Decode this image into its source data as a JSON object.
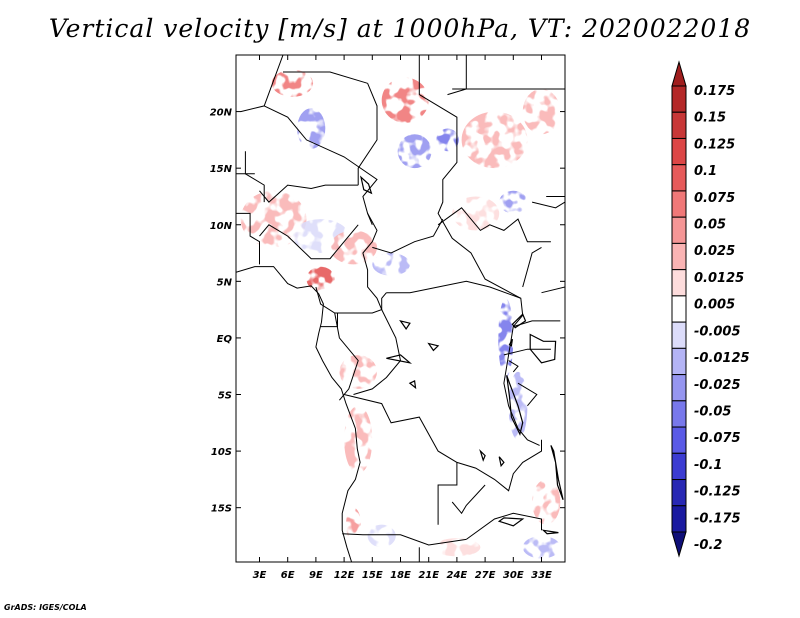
{
  "title": "Vertical velocity [m/s] at 1000hPa, VT: 2020022018",
  "credit": "GrADS: IGES/COLA",
  "map": {
    "lon_min": 0.5,
    "lon_max": 35.5,
    "lat_min": -19.8,
    "lat_max": 25.0,
    "lat_ticks": [
      {
        "value": 20,
        "label": "20N"
      },
      {
        "value": 15,
        "label": "15N"
      },
      {
        "value": 10,
        "label": "10N"
      },
      {
        "value": 5,
        "label": "5N"
      },
      {
        "value": 0,
        "label": "EQ"
      },
      {
        "value": -5,
        "label": "5S"
      },
      {
        "value": -10,
        "label": "10S"
      },
      {
        "value": -15,
        "label": "15S"
      }
    ],
    "lon_ticks": [
      {
        "value": 3,
        "label": "3E"
      },
      {
        "value": 6,
        "label": "6E"
      },
      {
        "value": 9,
        "label": "9E"
      },
      {
        "value": 12,
        "label": "12E"
      },
      {
        "value": 15,
        "label": "15E"
      },
      {
        "value": 18,
        "label": "18E"
      },
      {
        "value": 21,
        "label": "21E"
      },
      {
        "value": 24,
        "label": "24E"
      },
      {
        "value": 27,
        "label": "27E"
      },
      {
        "value": 30,
        "label": "30E"
      },
      {
        "value": 33,
        "label": "33E"
      }
    ]
  },
  "colorbar": {
    "levels": [
      "0.175",
      "0.15",
      "0.125",
      "0.1",
      "0.075",
      "0.05",
      "0.025",
      "0.0125",
      "0.005",
      "-0.005",
      "-0.0125",
      "-0.025",
      "-0.05",
      "-0.075",
      "-0.1",
      "-0.125",
      "-0.175",
      "-0.2"
    ],
    "colors": [
      "#a01e1e",
      "#b42828",
      "#c83737",
      "#dc4646",
      "#e65a5a",
      "#f07878",
      "#f59696",
      "#fab4b4",
      "#fddcdc",
      "#ffffff",
      "#dcdcfa",
      "#b4b4f5",
      "#9696f0",
      "#7878eb",
      "#5a5ae6",
      "#3c3cd2",
      "#2828b4",
      "#1a1aa0",
      "#0f0f78"
    ]
  },
  "patches": [
    {
      "lon": 6.5,
      "lat": 22.5,
      "rx": 2.2,
      "ry": 1.2,
      "value": 0.06
    },
    {
      "lon": 18.5,
      "lat": 21.0,
      "rx": 2.5,
      "ry": 2.0,
      "value": 0.07
    },
    {
      "lon": 8.5,
      "lat": 18.5,
      "rx": 1.5,
      "ry": 1.8,
      "value": -0.03
    },
    {
      "lon": 19.5,
      "lat": 16.5,
      "rx": 1.8,
      "ry": 1.5,
      "value": -0.04
    },
    {
      "lon": 23.0,
      "lat": 17.5,
      "rx": 1.2,
      "ry": 1.0,
      "value": -0.05
    },
    {
      "lon": 28.0,
      "lat": 17.5,
      "rx": 3.5,
      "ry": 2.5,
      "value": 0.02
    },
    {
      "lon": 33.0,
      "lat": 20.0,
      "rx": 2.0,
      "ry": 2.0,
      "value": 0.015
    },
    {
      "lon": 4.5,
      "lat": 10.5,
      "rx": 3.5,
      "ry": 2.5,
      "value": 0.015
    },
    {
      "lon": 9.5,
      "lat": 9.0,
      "rx": 3.0,
      "ry": 1.5,
      "value": -0.012
    },
    {
      "lon": 13.0,
      "lat": 8.0,
      "rx": 2.5,
      "ry": 1.5,
      "value": 0.02
    },
    {
      "lon": 17.0,
      "lat": 6.5,
      "rx": 2.0,
      "ry": 1.0,
      "value": -0.02
    },
    {
      "lon": 9.5,
      "lat": 5.2,
      "rx": 1.5,
      "ry": 1.1,
      "value": 0.1
    },
    {
      "lon": 26.0,
      "lat": 11.0,
      "rx": 2.5,
      "ry": 1.5,
      "value": 0.012
    },
    {
      "lon": 30.0,
      "lat": 12.0,
      "rx": 1.5,
      "ry": 1.0,
      "value": -0.03
    },
    {
      "lon": 29.2,
      "lat": 0.0,
      "rx": 0.8,
      "ry": 3.5,
      "value": -0.05
    },
    {
      "lon": 30.5,
      "lat": -6.0,
      "rx": 1.0,
      "ry": 3.0,
      "value": -0.02
    },
    {
      "lon": 13.5,
      "lat": -3.0,
      "rx": 2.0,
      "ry": 1.5,
      "value": 0.015
    },
    {
      "lon": 13.5,
      "lat": -9.0,
      "rx": 1.5,
      "ry": 3.0,
      "value": 0.02
    },
    {
      "lon": 13.0,
      "lat": -16.5,
      "rx": 0.8,
      "ry": 1.5,
      "value": 0.05
    },
    {
      "lon": 16.0,
      "lat": -17.5,
      "rx": 1.5,
      "ry": 1.0,
      "value": -0.012
    },
    {
      "lon": 33.5,
      "lat": -14.5,
      "rx": 1.5,
      "ry": 2.0,
      "value": 0.015
    },
    {
      "lon": 33.0,
      "lat": -18.5,
      "rx": 2.0,
      "ry": 1.0,
      "value": -0.02
    },
    {
      "lon": 24.0,
      "lat": -18.5,
      "rx": 2.5,
      "ry": 0.8,
      "value": 0.012
    }
  ],
  "borders": [
    [
      [
        20.0,
        25.0
      ],
      [
        20.0,
        21.5
      ]
    ],
    [
      [
        20.0,
        21.5
      ],
      [
        24.0,
        19.5
      ],
      [
        24.0,
        15.5
      ],
      [
        22.5,
        14.0
      ],
      [
        22.5,
        12.0
      ],
      [
        22.0,
        11.0
      ],
      [
        23.5,
        8.8
      ],
      [
        25.5,
        7.5
      ],
      [
        27.0,
        5.2
      ],
      [
        30.8,
        3.5
      ]
    ],
    [
      [
        23.0,
        21.5
      ],
      [
        25.0,
        22.0
      ],
      [
        25.0,
        25.0
      ]
    ],
    [
      [
        23.5,
        22.0
      ],
      [
        35.5,
        22.0
      ]
    ],
    [
      [
        3.5,
        20.5
      ],
      [
        6.0,
        19.5
      ],
      [
        8.0,
        17.5
      ],
      [
        12.0,
        16.0
      ],
      [
        15.5,
        14.0
      ],
      [
        14.0,
        12.5
      ],
      [
        14.5,
        11.0
      ],
      [
        15.0,
        10.0
      ]
    ],
    [
      [
        5.5,
        25.0
      ],
      [
        3.5,
        20.5
      ],
      [
        1.0,
        20.0
      ]
    ],
    [
      [
        5.5,
        23.5
      ],
      [
        10.5,
        23.5
      ],
      [
        14.5,
        22.5
      ]
    ],
    [
      [
        14.5,
        22.5
      ],
      [
        15.5,
        20.5
      ],
      [
        15.5,
        17.5
      ],
      [
        13.5,
        15.0
      ],
      [
        13.5,
        13.5
      ]
    ],
    [
      [
        1.5,
        16.5
      ],
      [
        1.5,
        14.5
      ],
      [
        3.5,
        13.5
      ],
      [
        3.5,
        12.0
      ]
    ],
    [
      [
        0.5,
        14.5
      ],
      [
        2.5,
        14.5
      ]
    ],
    [
      [
        0.5,
        11.0
      ],
      [
        2.0,
        11.0
      ],
      [
        2.0,
        9.0
      ],
      [
        3.0,
        8.5
      ],
      [
        3.0,
        6.5
      ]
    ],
    [
      [
        3.0,
        13.0
      ],
      [
        4.0,
        12.0
      ],
      [
        6.0,
        13.5
      ],
      [
        8.5,
        13.2
      ],
      [
        10.0,
        13.5
      ],
      [
        13.5,
        13.5
      ]
    ],
    [
      [
        3.0,
        9.0
      ],
      [
        4.0,
        10.0
      ],
      [
        6.0,
        9.0
      ],
      [
        8.5,
        7.0
      ],
      [
        10.5,
        7.0
      ],
      [
        12.0,
        8.5
      ],
      [
        13.5,
        10.0
      ]
    ],
    [
      [
        9.0,
        4.5
      ],
      [
        9.5,
        3.0
      ],
      [
        11.0,
        2.2
      ],
      [
        15.0,
        2.2
      ],
      [
        16.0,
        2.5
      ],
      [
        16.0,
        3.5
      ],
      [
        16.5,
        4.0
      ]
    ],
    [
      [
        14.5,
        11.0
      ],
      [
        15.5,
        9.5
      ],
      [
        15.0,
        8.5
      ],
      [
        14.0,
        7.5
      ],
      [
        14.5,
        6.0
      ],
      [
        14.5,
        4.5
      ],
      [
        15.5,
        3.5
      ],
      [
        16.0,
        2.5
      ]
    ],
    [
      [
        15.0,
        8.0
      ],
      [
        17.0,
        7.5
      ],
      [
        19.5,
        8.5
      ],
      [
        21.5,
        9.0
      ],
      [
        22.5,
        10.5
      ]
    ],
    [
      [
        16.5,
        4.0
      ],
      [
        19.0,
        4.0
      ],
      [
        22.0,
        4.5
      ],
      [
        25.0,
        5.0
      ],
      [
        27.5,
        4.5
      ],
      [
        30.8,
        3.5
      ],
      [
        31.0,
        2.0
      ],
      [
        30.0,
        1.0
      ],
      [
        29.5,
        -1.5
      ],
      [
        29.0,
        -4.0
      ],
      [
        29.5,
        -6.0
      ],
      [
        30.5,
        -8.0
      ]
    ],
    [
      [
        16.0,
        2.5
      ],
      [
        17.5,
        0.0
      ],
      [
        18.0,
        -2.0
      ],
      [
        16.5,
        -3.5
      ],
      [
        15.0,
        -4.5
      ],
      [
        13.0,
        -5.0
      ]
    ],
    [
      [
        9.5,
        1.0
      ],
      [
        11.3,
        1.0
      ],
      [
        11.3,
        2.2
      ]
    ],
    [
      [
        11.0,
        2.2
      ],
      [
        11.5,
        0.0
      ],
      [
        13.5,
        -2.0
      ],
      [
        12.5,
        -4.5
      ],
      [
        11.5,
        -5.5
      ]
    ],
    [
      [
        12.0,
        -5.0
      ],
      [
        16.0,
        -5.8
      ],
      [
        17.0,
        -7.5
      ],
      [
        20.0,
        -7.0
      ],
      [
        22.0,
        -10.0
      ],
      [
        24.0,
        -11.0
      ],
      [
        24.0,
        -13.0
      ],
      [
        22.0,
        -13.0
      ],
      [
        22.0,
        -16.5
      ]
    ],
    [
      [
        11.8,
        -17.3
      ],
      [
        14.0,
        -17.4
      ],
      [
        18.0,
        -17.4
      ],
      [
        21.0,
        -18.3
      ],
      [
        25.0,
        -17.8
      ]
    ],
    [
      [
        20.0,
        -18.5
      ],
      [
        20.0,
        -22.0
      ]
    ],
    [
      [
        24.0,
        -11.0
      ],
      [
        26.0,
        -11.5
      ],
      [
        28.0,
        -12.5
      ],
      [
        29.5,
        -13.5
      ],
      [
        30.0,
        -12.0
      ],
      [
        31.0,
        -11.0
      ],
      [
        33.0,
        -10.0
      ],
      [
        33.0,
        -9.0
      ]
    ],
    [
      [
        30.5,
        -8.0
      ],
      [
        31.5,
        -9.0
      ],
      [
        32.8,
        -9.5
      ]
    ],
    [
      [
        25.0,
        -17.8
      ],
      [
        28.0,
        -16.0
      ],
      [
        30.0,
        -15.5
      ],
      [
        33.0,
        -16.0
      ],
      [
        33.0,
        -17.0
      ]
    ],
    [
      [
        30.0,
        1.0
      ],
      [
        32.0,
        1.5
      ],
      [
        35.0,
        1.5
      ]
    ],
    [
      [
        29.0,
        -1.5
      ],
      [
        31.5,
        -1.0
      ],
      [
        34.0,
        -1.0
      ]
    ],
    [
      [
        29.5,
        -2.0
      ],
      [
        30.5,
        -2.5
      ],
      [
        30.0,
        -3.0
      ]
    ],
    [
      [
        33.0,
        4.0
      ],
      [
        35.5,
        4.5
      ]
    ],
    [
      [
        31.0,
        4.5
      ],
      [
        32.0,
        7.5
      ],
      [
        33.0,
        8.0
      ]
    ],
    [
      [
        33.5,
        12.5
      ],
      [
        35.5,
        12.5
      ]
    ],
    [
      [
        22.0,
        10.0
      ],
      [
        24.5,
        11.5
      ],
      [
        26.5,
        9.5
      ],
      [
        27.5,
        10.0
      ],
      [
        29.0,
        9.5
      ],
      [
        30.5,
        10.5
      ],
      [
        31.5,
        8.5
      ],
      [
        34.0,
        8.5
      ]
    ],
    [
      [
        32.0,
        12.0
      ],
      [
        34.5,
        11.5
      ],
      [
        35.5,
        12.0
      ]
    ],
    [
      [
        23.5,
        -14.5
      ],
      [
        24.5,
        -15.5
      ],
      [
        25.0,
        -14.8
      ],
      [
        27.0,
        -13.0
      ]
    ],
    [
      [
        30.5,
        -4.0
      ],
      [
        32.5,
        -5.0
      ],
      [
        31.5,
        -6.0
      ]
    ]
  ],
  "coast": [
    [
      0.5,
      5.8
    ],
    [
      2.5,
      6.3
    ],
    [
      4.5,
      6.3
    ],
    [
      6.0,
      4.8
    ],
    [
      7.0,
      4.4
    ],
    [
      8.5,
      4.6
    ],
    [
      9.3,
      3.9
    ],
    [
      9.8,
      3.0
    ],
    [
      9.6,
      1.4
    ],
    [
      9.3,
      0.4
    ],
    [
      9.0,
      -0.8
    ],
    [
      9.7,
      -2.0
    ],
    [
      10.7,
      -3.5
    ],
    [
      11.7,
      -4.5
    ],
    [
      12.2,
      -5.8
    ],
    [
      13.2,
      -8.0
    ],
    [
      13.4,
      -9.8
    ],
    [
      13.7,
      -11.0
    ],
    [
      13.2,
      -12.5
    ],
    [
      12.4,
      -13.5
    ],
    [
      11.8,
      -15.5
    ],
    [
      11.8,
      -17.0
    ],
    [
      12.3,
      -18.5
    ],
    [
      12.8,
      -19.8
    ]
  ],
  "lakes": [
    [
      [
        29.3,
        -3.3
      ],
      [
        29.6,
        -5.2
      ],
      [
        29.8,
        -7.0
      ],
      [
        30.7,
        -8.5
      ],
      [
        31.0,
        -7.5
      ],
      [
        30.5,
        -6.0
      ],
      [
        29.6,
        -4.0
      ]
    ],
    [
      [
        34.0,
        -9.5
      ],
      [
        34.5,
        -11.0
      ],
      [
        34.7,
        -13.0
      ],
      [
        35.3,
        -14.3
      ],
      [
        34.8,
        -12.5
      ],
      [
        34.3,
        -10.0
      ]
    ],
    [
      [
        31.8,
        0.3
      ],
      [
        33.2,
        -0.3
      ],
      [
        34.5,
        -0.3
      ],
      [
        34.4,
        -1.9
      ],
      [
        33.0,
        -2.2
      ],
      [
        31.8,
        -1.0
      ]
    ],
    [
      [
        29.9,
        1.2
      ],
      [
        31.0,
        2.1
      ],
      [
        31.3,
        1.5
      ],
      [
        30.2,
        0.9
      ]
    ],
    [
      [
        29.6,
        -0.6
      ],
      [
        29.9,
        -0.1
      ],
      [
        29.8,
        -0.7
      ]
    ],
    [
      [
        28.5,
        -16.2
      ],
      [
        30.0,
        -16.6
      ],
      [
        31.0,
        -16.0
      ],
      [
        29.0,
        -15.9
      ]
    ],
    [
      [
        33.2,
        -17.0
      ],
      [
        34.8,
        -17.2
      ],
      [
        33.6,
        -17.3
      ]
    ],
    [
      [
        13.8,
        14.2
      ],
      [
        14.6,
        13.6
      ],
      [
        14.9,
        12.8
      ],
      [
        14.1,
        13.1
      ]
    ],
    [
      [
        16.5,
        -1.8
      ],
      [
        19.0,
        -2.2
      ],
      [
        18.0,
        -1.5
      ]
    ],
    [
      [
        18.0,
        1.5
      ],
      [
        19.0,
        1.3
      ],
      [
        18.6,
        0.8
      ]
    ],
    [
      [
        21.0,
        -0.5
      ],
      [
        22.0,
        -0.7
      ],
      [
        21.5,
        -1.1
      ]
    ],
    [
      [
        19.0,
        -4.0
      ],
      [
        19.5,
        -3.8
      ],
      [
        19.6,
        -4.4
      ]
    ],
    [
      [
        26.5,
        -10.0
      ],
      [
        27.0,
        -10.4
      ],
      [
        26.8,
        -10.8
      ]
    ],
    [
      [
        28.5,
        -10.5
      ],
      [
        29.0,
        -11.0
      ],
      [
        28.7,
        -11.3
      ]
    ]
  ]
}
